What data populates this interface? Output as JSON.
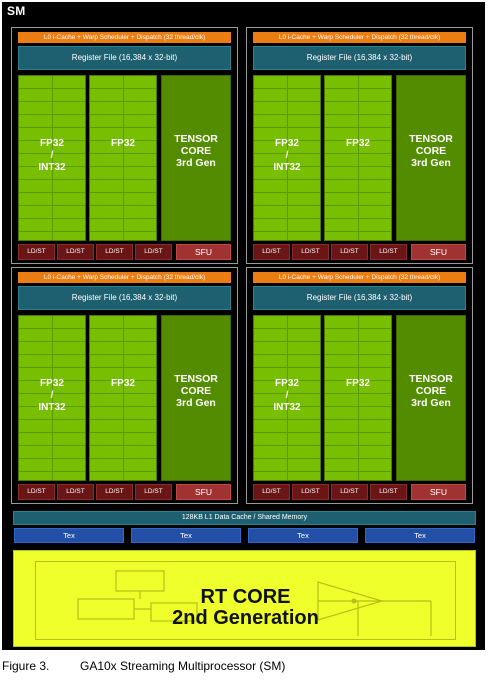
{
  "sm": {
    "title": "SM",
    "partitions": [
      {
        "l0": "L0 i-Cache + Warp Scheduler + Dispatch (32 thread/clk)",
        "register_file": "Register File (16,384 x 32-bit)",
        "fp32_int32": [
          "FP32",
          "/",
          "INT32"
        ],
        "fp32": "FP32",
        "tensor": [
          "TENSOR",
          "CORE",
          "3rd Gen"
        ],
        "ldst": [
          "LD/ST",
          "LD/ST",
          "LD/ST",
          "LD/ST"
        ],
        "sfu": "SFU"
      },
      {
        "l0": "L0 i-Cache + Warp Scheduler + Dispatch (32 thread/clk)",
        "register_file": "Register File (16,384 x 32-bit)",
        "fp32_int32": [
          "FP32",
          "/",
          "INT32"
        ],
        "fp32": "FP32",
        "tensor": [
          "TENSOR",
          "CORE",
          "3rd Gen"
        ],
        "ldst": [
          "LD/ST",
          "LD/ST",
          "LD/ST",
          "LD/ST"
        ],
        "sfu": "SFU"
      },
      {
        "l0": "L0 i-Cache + Warp Scheduler + Dispatch (32 thread/clk)",
        "register_file": "Register File (16,384 x 32-bit)",
        "fp32_int32": [
          "FP32",
          "/",
          "INT32"
        ],
        "fp32": "FP32",
        "tensor": [
          "TENSOR",
          "CORE",
          "3rd Gen"
        ],
        "ldst": [
          "LD/ST",
          "LD/ST",
          "LD/ST",
          "LD/ST"
        ],
        "sfu": "SFU"
      },
      {
        "l0": "L0 i-Cache + Warp Scheduler + Dispatch (32 thread/clk)",
        "register_file": "Register File (16,384 x 32-bit)",
        "fp32_int32": [
          "FP32",
          "/",
          "INT32"
        ],
        "fp32": "FP32",
        "tensor": [
          "TENSOR",
          "CORE",
          "3rd Gen"
        ],
        "ldst": [
          "LD/ST",
          "LD/ST",
          "LD/ST",
          "LD/ST"
        ],
        "sfu": "SFU"
      }
    ],
    "l1_cache": "128KB L1 Data Cache / Shared Memory",
    "tex_units": [
      "Tex",
      "Tex",
      "Tex",
      "Tex"
    ],
    "rt_core": [
      "RT CORE",
      "2nd Generation"
    ]
  },
  "caption": {
    "number": "Figure 3.",
    "text": "GA10x Streaming Multiprocessor (SM)"
  },
  "colors": {
    "sm_background": "#000000",
    "l0_orange": "#ec7d13",
    "register_teal": "#1f6070",
    "fp32_green": "#77bf00",
    "tensor_green": "#548c00",
    "ldst_darkred": "#6a1616",
    "sfu_red": "#a03232",
    "tex_blue": "#2350a6",
    "rt_core_yellow": "#efff2c"
  }
}
